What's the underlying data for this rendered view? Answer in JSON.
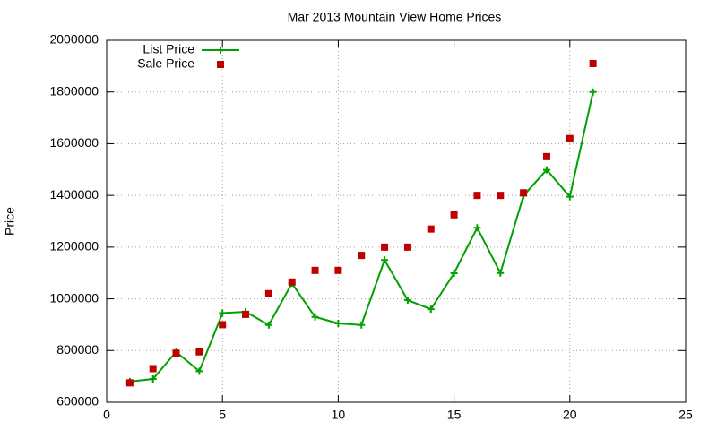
{
  "chart_data": {
    "type": "line",
    "title": "Mar 2013 Mountain View Home Prices",
    "y_label": "Price",
    "x": [
      1,
      2,
      3,
      4,
      5,
      6,
      7,
      8,
      9,
      10,
      11,
      12,
      13,
      14,
      15,
      16,
      17,
      18,
      19,
      20,
      21
    ],
    "series": [
      {
        "name": "List Price",
        "color": "#00a000",
        "marker": "plus",
        "line": true,
        "values": [
          680000,
          690000,
          795000,
          720000,
          945000,
          950000,
          899000,
          1060000,
          930000,
          905000,
          899000,
          1150000,
          995000,
          960000,
          1099000,
          1275000,
          1100000,
          1399000,
          1499000,
          1395000,
          1800000
        ]
      },
      {
        "name": "Sale Price",
        "color": "#c00000",
        "marker": "square",
        "line": false,
        "values": [
          675000,
          730000,
          790000,
          795000,
          900000,
          940000,
          1020000,
          1065000,
          1110000,
          1110000,
          1168000,
          1200000,
          1200000,
          1270000,
          1325000,
          1400000,
          1400000,
          1410000,
          1550000,
          1620000,
          1910000
        ]
      }
    ],
    "xlim": [
      0,
      25
    ],
    "xticks": [
      0,
      5,
      10,
      15,
      20,
      25
    ],
    "ylim": [
      600000,
      2000000
    ],
    "yticks": [
      600000,
      800000,
      1000000,
      1200000,
      1400000,
      1600000,
      1800000,
      2000000
    ],
    "grid": true,
    "legend": "top-left"
  }
}
